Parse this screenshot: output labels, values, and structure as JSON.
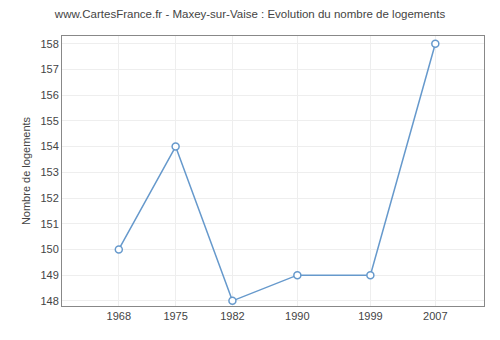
{
  "chart_data": {
    "type": "line",
    "title": "www.CartesFrance.fr - Maxey-sur-Vaise : Evolution du nombre de logements",
    "ylabel": "Nombre de logements",
    "x": [
      1968,
      1975,
      1982,
      1990,
      1999,
      2007
    ],
    "values": [
      150,
      154,
      148,
      149,
      149,
      158
    ],
    "xlim": [
      1961,
      2013
    ],
    "xticks": [
      1968,
      1975,
      1982,
      1990,
      1999,
      2007
    ],
    "ylim": [
      147.8,
      158.3
    ],
    "yticks": [
      148,
      149,
      150,
      151,
      152,
      153,
      154,
      155,
      156,
      157,
      158
    ],
    "color": "#6699cc",
    "marker": "circle",
    "grid": true
  }
}
